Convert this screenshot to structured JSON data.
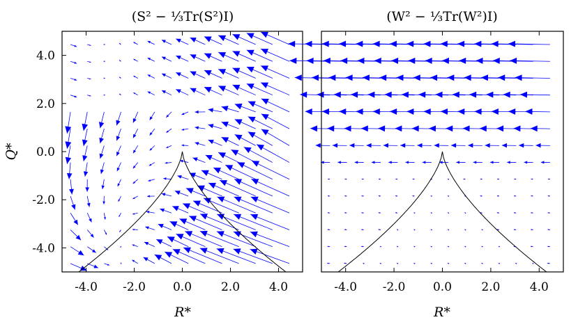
{
  "chart_data": [
    {
      "type": "quiver",
      "title": "(S² − ⅓Tr(S²)I)",
      "xlabel": "R*",
      "ylabel": "Q*",
      "xlim": [
        -5,
        5
      ],
      "ylim": [
        -5,
        5
      ],
      "xticks": [
        "-4.0",
        "-2.0",
        "0.0",
        "2.0",
        "4.0"
      ],
      "yticks": [
        "4.0",
        "2.0",
        "0.0",
        "-2.0",
        "-4.0"
      ],
      "xtick_values": [
        -4,
        -2,
        0,
        2,
        4
      ],
      "ytick_values": [
        4,
        2,
        0,
        -2,
        -4
      ],
      "arrow_color": "#0000ff",
      "field": "S",
      "vieillefosse_curve": true
    },
    {
      "type": "quiver",
      "title": "(W² − ⅓Tr(W²)I)",
      "xlabel": "R*",
      "ylabel": "",
      "xlim": [
        -5,
        5
      ],
      "ylim": [
        -5,
        5
      ],
      "xticks": [
        "-4.0",
        "-2.0",
        "0.0",
        "2.0",
        "4.0"
      ],
      "xtick_values": [
        -4,
        -2,
        0,
        2,
        4
      ],
      "arrow_color": "#0000ff",
      "field": "W",
      "vieillefosse_curve": true
    }
  ]
}
